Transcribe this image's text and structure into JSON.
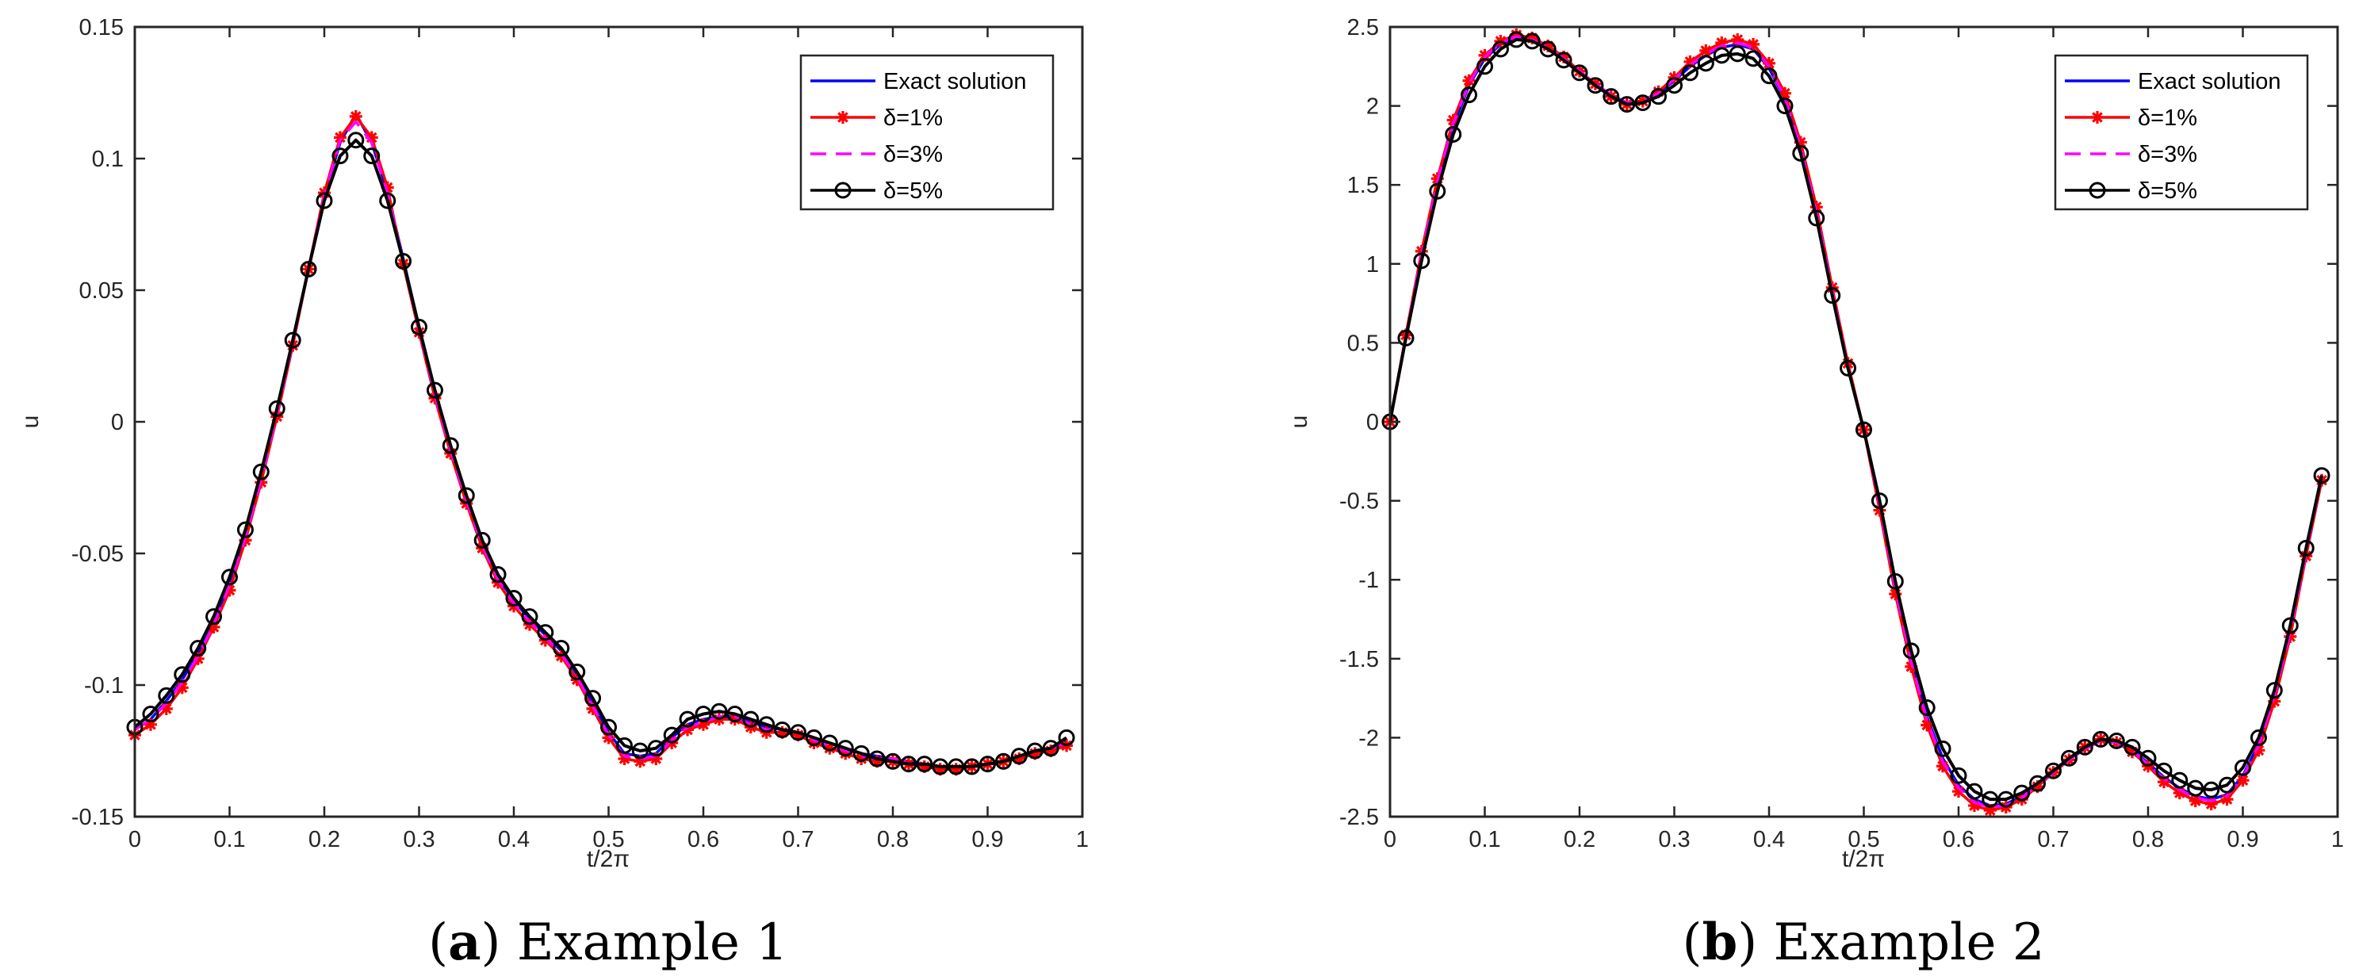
{
  "figure": {
    "captions": [
      {
        "letter": "a",
        "text": "Example 1"
      },
      {
        "letter": "b",
        "text": "Example 2"
      }
    ]
  },
  "colors": {
    "exact": "#0000ff",
    "delta1": "#ff0000",
    "delta3": "#ff00ff",
    "delta5": "#000000",
    "axes": "#262626"
  },
  "chart_data": [
    {
      "type": "line",
      "title": "",
      "xlabel": "t/2π",
      "ylabel": "u",
      "xlim": [
        0,
        1
      ],
      "ylim": [
        -0.15,
        0.15
      ],
      "xticks": [
        0,
        0.1,
        0.2,
        0.3,
        0.4,
        0.5,
        0.6,
        0.7,
        0.8,
        0.9,
        1
      ],
      "xtick_labels": [
        "0",
        "0.1",
        "0.2",
        "0.3",
        "0.4",
        "0.5",
        "0.6",
        "0.7",
        "0.8",
        "0.9",
        "1"
      ],
      "yticks": [
        -0.15,
        -0.1,
        -0.05,
        0,
        0.05,
        0.1,
        0.15
      ],
      "ytick_labels": [
        "-0.15",
        "-0.1",
        "-0.05",
        "0",
        "0.05",
        "0.1",
        "0.15"
      ],
      "legend_position": "top-right",
      "legend": [
        "Exact solution",
        "δ=1%",
        "δ=3%",
        "δ=5%"
      ],
      "x": [
        0,
        0.0167,
        0.0333,
        0.05,
        0.0667,
        0.0833,
        0.1,
        0.1167,
        0.1333,
        0.15,
        0.1667,
        0.1833,
        0.2,
        0.2167,
        0.2333,
        0.25,
        0.2667,
        0.2833,
        0.3,
        0.3167,
        0.3333,
        0.35,
        0.3667,
        0.3833,
        0.4,
        0.4167,
        0.4333,
        0.45,
        0.4667,
        0.4833,
        0.5,
        0.5167,
        0.5333,
        0.55,
        0.5667,
        0.5833,
        0.6,
        0.6167,
        0.6333,
        0.65,
        0.6667,
        0.6833,
        0.7,
        0.7167,
        0.7333,
        0.75,
        0.7667,
        0.7833,
        0.8,
        0.8167,
        0.8333,
        0.85,
        0.8667,
        0.8833,
        0.9,
        0.9167,
        0.9333,
        0.95,
        0.9667,
        0.9833
      ],
      "series": [
        {
          "name": "Exact solution",
          "style": "solid",
          "marker": "none",
          "values": [
            -0.117,
            -0.113,
            -0.106,
            -0.098,
            -0.088,
            -0.076,
            -0.061,
            -0.043,
            -0.021,
            0.004,
            0.03,
            0.058,
            0.086,
            0.106,
            0.117,
            0.106,
            0.087,
            0.062,
            0.036,
            0.011,
            -0.01,
            -0.029,
            -0.046,
            -0.059,
            -0.068,
            -0.075,
            -0.081,
            -0.087,
            -0.096,
            -0.107,
            -0.118,
            -0.126,
            -0.127,
            -0.126,
            -0.12,
            -0.115,
            -0.113,
            -0.112,
            -0.112,
            -0.114,
            -0.116,
            -0.117,
            -0.118,
            -0.12,
            -0.122,
            -0.124,
            -0.126,
            -0.127,
            -0.128,
            -0.129,
            -0.13,
            -0.131,
            -0.131,
            -0.131,
            -0.13,
            -0.129,
            -0.127,
            -0.125,
            -0.124,
            -0.121
          ]
        },
        {
          "name": "δ=1%",
          "style": "solid",
          "marker": "asterisk",
          "values": [
            -0.119,
            -0.115,
            -0.109,
            -0.101,
            -0.09,
            -0.078,
            -0.064,
            -0.045,
            -0.023,
            0.002,
            0.029,
            0.058,
            0.087,
            0.108,
            0.116,
            0.108,
            0.089,
            0.06,
            0.034,
            0.009,
            -0.012,
            -0.031,
            -0.048,
            -0.061,
            -0.07,
            -0.077,
            -0.083,
            -0.089,
            -0.098,
            -0.109,
            -0.12,
            -0.128,
            -0.129,
            -0.128,
            -0.122,
            -0.117,
            -0.115,
            -0.113,
            -0.113,
            -0.116,
            -0.118,
            -0.118,
            -0.119,
            -0.122,
            -0.124,
            -0.126,
            -0.128,
            -0.129,
            -0.129,
            -0.13,
            -0.131,
            -0.132,
            -0.132,
            -0.131,
            -0.13,
            -0.129,
            -0.128,
            -0.126,
            -0.125,
            -0.123
          ]
        },
        {
          "name": "δ=3%",
          "style": "dashed",
          "marker": "none",
          "values": [
            -0.117,
            -0.113,
            -0.107,
            -0.099,
            -0.089,
            -0.077,
            -0.062,
            -0.044,
            -0.022,
            0.003,
            0.03,
            0.058,
            0.086,
            0.107,
            0.114,
            0.106,
            0.087,
            0.061,
            0.035,
            0.01,
            -0.011,
            -0.03,
            -0.047,
            -0.06,
            -0.069,
            -0.076,
            -0.082,
            -0.088,
            -0.097,
            -0.108,
            -0.119,
            -0.127,
            -0.128,
            -0.127,
            -0.121,
            -0.116,
            -0.114,
            -0.112,
            -0.112,
            -0.115,
            -0.117,
            -0.117,
            -0.118,
            -0.121,
            -0.123,
            -0.125,
            -0.127,
            -0.128,
            -0.128,
            -0.129,
            -0.13,
            -0.131,
            -0.131,
            -0.131,
            -0.13,
            -0.129,
            -0.127,
            -0.125,
            -0.124,
            -0.122
          ]
        },
        {
          "name": "δ=5%",
          "style": "solid",
          "marker": "circle",
          "values": [
            -0.116,
            -0.111,
            -0.104,
            -0.096,
            -0.086,
            -0.074,
            -0.059,
            -0.041,
            -0.019,
            0.005,
            0.031,
            0.058,
            0.084,
            0.101,
            0.107,
            0.101,
            0.084,
            0.061,
            0.036,
            0.012,
            -0.009,
            -0.028,
            -0.045,
            -0.058,
            -0.067,
            -0.074,
            -0.08,
            -0.086,
            -0.095,
            -0.105,
            -0.116,
            -0.123,
            -0.125,
            -0.124,
            -0.119,
            -0.113,
            -0.111,
            -0.11,
            -0.111,
            -0.113,
            -0.115,
            -0.117,
            -0.118,
            -0.12,
            -0.122,
            -0.124,
            -0.126,
            -0.128,
            -0.129,
            -0.13,
            -0.13,
            -0.131,
            -0.131,
            -0.131,
            -0.13,
            -0.129,
            -0.127,
            -0.125,
            -0.124,
            -0.12
          ]
        }
      ]
    },
    {
      "type": "line",
      "title": "",
      "xlabel": "t/2π",
      "ylabel": "u",
      "xlim": [
        0,
        1
      ],
      "ylim": [
        -2.5,
        2.5
      ],
      "xticks": [
        0,
        0.1,
        0.2,
        0.3,
        0.4,
        0.5,
        0.6,
        0.7,
        0.8,
        0.9,
        1
      ],
      "xtick_labels": [
        "0",
        "0.1",
        "0.2",
        "0.3",
        "0.4",
        "0.5",
        "0.6",
        "0.7",
        "0.8",
        "0.9",
        "1"
      ],
      "yticks": [
        -2.5,
        -2,
        -1.5,
        -1,
        -0.5,
        0,
        0.5,
        1,
        1.5,
        2,
        2.5
      ],
      "ytick_labels": [
        "-2.5",
        "-2",
        "-1.5",
        "-1",
        "-0.5",
        "0",
        "0.5",
        "1",
        "1.5",
        "2",
        "2.5"
      ],
      "legend_position": "top-right",
      "legend": [
        "Exact solution",
        "δ=1%",
        "δ=3%",
        "δ=5%"
      ],
      "x": [
        0,
        0.0167,
        0.0333,
        0.05,
        0.0667,
        0.0833,
        0.1,
        0.1167,
        0.1333,
        0.15,
        0.1667,
        0.1833,
        0.2,
        0.2167,
        0.2333,
        0.25,
        0.2667,
        0.2833,
        0.3,
        0.3167,
        0.3333,
        0.35,
        0.3667,
        0.3833,
        0.4,
        0.4167,
        0.4333,
        0.45,
        0.4667,
        0.4833,
        0.5,
        0.5167,
        0.5333,
        0.55,
        0.5667,
        0.5833,
        0.6,
        0.6167,
        0.6333,
        0.65,
        0.6667,
        0.6833,
        0.7,
        0.7167,
        0.7333,
        0.75,
        0.7667,
        0.7833,
        0.8,
        0.8167,
        0.8333,
        0.85,
        0.8667,
        0.8833,
        0.9,
        0.9167,
        0.9333,
        0.95,
        0.9667,
        0.9833
      ],
      "series": [
        {
          "name": "Exact solution",
          "style": "solid",
          "marker": "none",
          "values": [
            0,
            0.54,
            1.05,
            1.5,
            1.87,
            2.13,
            2.3,
            2.39,
            2.43,
            2.42,
            2.37,
            2.3,
            2.22,
            2.14,
            2.07,
            2.02,
            2.03,
            2.08,
            2.16,
            2.25,
            2.32,
            2.37,
            2.39,
            2.36,
            2.24,
            2.04,
            1.73,
            1.32,
            0.82,
            0.35,
            -0.05,
            -0.52,
            -1.05,
            -1.5,
            -1.87,
            -2.13,
            -2.3,
            -2.39,
            -2.43,
            -2.42,
            -2.37,
            -2.3,
            -2.22,
            -2.14,
            -2.07,
            -2.02,
            -2.03,
            -2.08,
            -2.16,
            -2.25,
            -2.32,
            -2.37,
            -2.39,
            -2.36,
            -2.24,
            -2.04,
            -1.73,
            -1.32,
            -0.82,
            -0.35
          ]
        },
        {
          "name": "δ=1%",
          "style": "solid",
          "marker": "asterisk",
          "values": [
            0,
            0.55,
            1.08,
            1.54,
            1.91,
            2.16,
            2.32,
            2.41,
            2.45,
            2.43,
            2.38,
            2.31,
            2.22,
            2.14,
            2.06,
            2.01,
            2.03,
            2.09,
            2.18,
            2.28,
            2.35,
            2.4,
            2.42,
            2.39,
            2.27,
            2.08,
            1.77,
            1.36,
            0.85,
            0.37,
            -0.05,
            -0.56,
            -1.09,
            -1.55,
            -1.92,
            -2.18,
            -2.34,
            -2.43,
            -2.46,
            -2.44,
            -2.39,
            -2.31,
            -2.22,
            -2.14,
            -2.06,
            -2.01,
            -2.03,
            -2.09,
            -2.18,
            -2.28,
            -2.35,
            -2.4,
            -2.42,
            -2.39,
            -2.27,
            -2.08,
            -1.77,
            -1.36,
            -0.85,
            -0.37
          ]
        },
        {
          "name": "δ=3%",
          "style": "dashed",
          "marker": "none",
          "values": [
            0,
            0.54,
            1.06,
            1.52,
            1.89,
            2.14,
            2.31,
            2.4,
            2.44,
            2.42,
            2.37,
            2.3,
            2.22,
            2.14,
            2.07,
            2.02,
            2.03,
            2.08,
            2.17,
            2.26,
            2.33,
            2.38,
            2.4,
            2.37,
            2.25,
            2.05,
            1.74,
            1.33,
            0.83,
            0.35,
            -0.05,
            -0.53,
            -1.06,
            -1.52,
            -1.89,
            -2.15,
            -2.32,
            -2.41,
            -2.44,
            -2.43,
            -2.38,
            -2.3,
            -2.22,
            -2.14,
            -2.07,
            -2.02,
            -2.03,
            -2.08,
            -2.17,
            -2.26,
            -2.33,
            -2.38,
            -2.4,
            -2.37,
            -2.25,
            -2.05,
            -1.74,
            -1.33,
            -0.83,
            -0.35
          ]
        },
        {
          "name": "δ=5%",
          "style": "solid",
          "marker": "circle",
          "values": [
            0,
            0.53,
            1.02,
            1.46,
            1.82,
            2.07,
            2.25,
            2.36,
            2.42,
            2.41,
            2.36,
            2.29,
            2.21,
            2.13,
            2.06,
            2.01,
            2.02,
            2.06,
            2.13,
            2.21,
            2.27,
            2.32,
            2.33,
            2.3,
            2.19,
            2.0,
            1.7,
            1.29,
            0.8,
            0.34,
            -0.05,
            -0.5,
            -1.01,
            -1.45,
            -1.81,
            -2.07,
            -2.24,
            -2.34,
            -2.39,
            -2.39,
            -2.35,
            -2.29,
            -2.21,
            -2.13,
            -2.06,
            -2.01,
            -2.02,
            -2.06,
            -2.13,
            -2.21,
            -2.27,
            -2.32,
            -2.33,
            -2.3,
            -2.19,
            -2.0,
            -1.7,
            -1.29,
            -0.8,
            -0.34
          ]
        }
      ]
    }
  ]
}
